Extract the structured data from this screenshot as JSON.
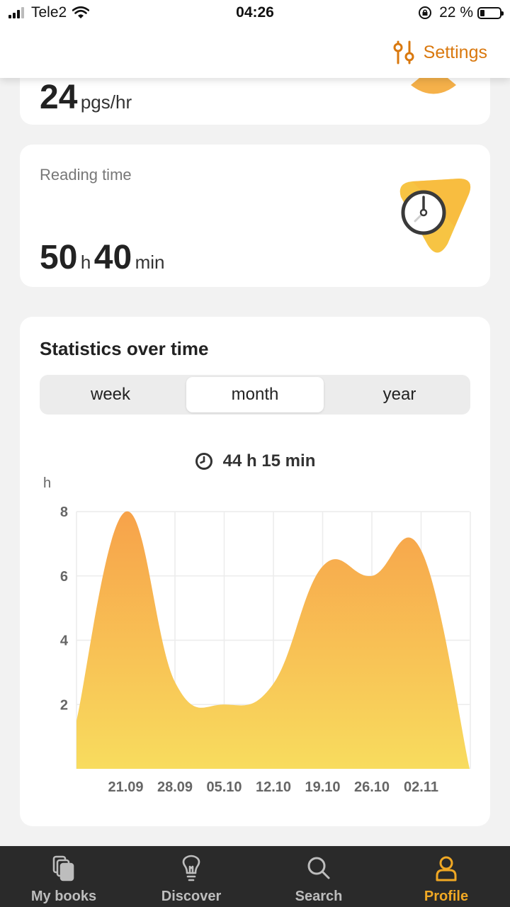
{
  "status_bar": {
    "carrier": "Tele2",
    "time": "04:26",
    "battery_text": "22 %",
    "battery_level": 0.22
  },
  "header": {
    "settings_label": "Settings"
  },
  "speed_card": {
    "value": "24",
    "unit": "pgs/hr"
  },
  "time_card": {
    "label": "Reading time",
    "hours": "50",
    "hours_unit": "h",
    "minutes": "40",
    "minutes_unit": "min"
  },
  "stats": {
    "title": "Statistics over time",
    "tabs": [
      {
        "label": "week",
        "active": false
      },
      {
        "label": "month",
        "active": true
      },
      {
        "label": "year",
        "active": false
      }
    ],
    "total": "44 h 15 min"
  },
  "chart_data": {
    "type": "area",
    "ylabel": "h",
    "ylim": [
      0,
      8
    ],
    "yticks": [
      2,
      4,
      6,
      8
    ],
    "x": [
      "21.09",
      "28.09",
      "05.10",
      "12.10",
      "19.10",
      "26.10",
      "02.11"
    ],
    "values": [
      8,
      2.7,
      2.0,
      2.65,
      6.3,
      6.0,
      6.8
    ],
    "start_value": 1.5,
    "end_value": 0,
    "grid": true,
    "colors": {
      "top": "#f7a24a",
      "bottom": "#f8dc5e"
    }
  },
  "colors": {
    "accent": "#d9780e",
    "tab_active": "#f0a824",
    "tab_inactive": "#bdbdbd",
    "tabbar_bg": "#2a2a2a"
  },
  "tabbar": {
    "items": [
      {
        "label": "My books",
        "icon": "books-icon",
        "active": false
      },
      {
        "label": "Discover",
        "icon": "lightbulb-icon",
        "active": false
      },
      {
        "label": "Search",
        "icon": "search-icon",
        "active": false
      },
      {
        "label": "Profile",
        "icon": "person-icon",
        "active": true
      }
    ]
  }
}
